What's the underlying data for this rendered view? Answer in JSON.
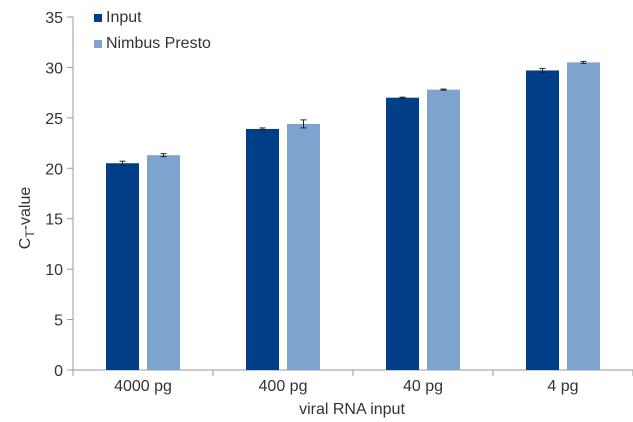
{
  "chart_data": {
    "type": "bar",
    "title": "",
    "xlabel": "viral RNA input",
    "ylabel_main": "C",
    "ylabel_sub": "T",
    "ylabel_suffix": "-value",
    "ylim": [
      0,
      35
    ],
    "yticks": [
      0,
      5,
      10,
      15,
      20,
      25,
      30,
      35
    ],
    "grid": false,
    "legend_position": "top-left",
    "categories": [
      "4000 pg",
      "400 pg",
      "40 pg",
      "4 pg"
    ],
    "series": [
      {
        "name": "Input",
        "color": "#003f87",
        "values": [
          20.5,
          23.9,
          27.0,
          29.7
        ],
        "errors": [
          0.2,
          0.1,
          0.05,
          0.2
        ]
      },
      {
        "name": "Nimbus Presto",
        "color": "#7fa3cf",
        "values": [
          21.3,
          24.4,
          27.8,
          30.5
        ],
        "errors": [
          0.15,
          0.4,
          0.05,
          0.1
        ]
      }
    ]
  }
}
